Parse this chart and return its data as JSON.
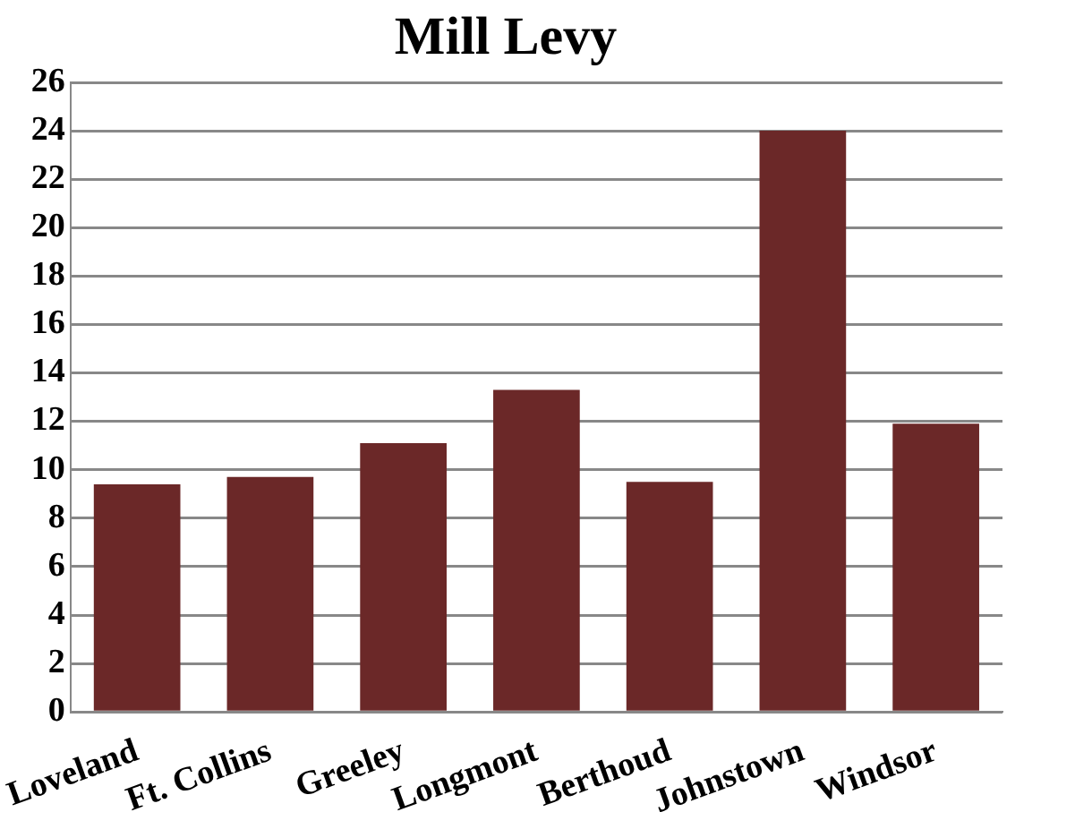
{
  "chart_data": {
    "type": "bar",
    "title": "Mill Levy",
    "categories": [
      "Loveland",
      "Ft. Collins",
      "Greeley",
      "Longmont",
      "Berthoud",
      "Johnstown",
      "Windsor"
    ],
    "values": [
      9.4,
      9.7,
      11.1,
      13.3,
      9.5,
      24.0,
      11.9
    ],
    "color": "#6b2828",
    "ylim": [
      0,
      26
    ],
    "yticks": [
      0,
      2,
      4,
      6,
      8,
      10,
      12,
      14,
      16,
      18,
      20,
      22,
      24,
      26
    ],
    "grid": "y",
    "legend": false
  }
}
